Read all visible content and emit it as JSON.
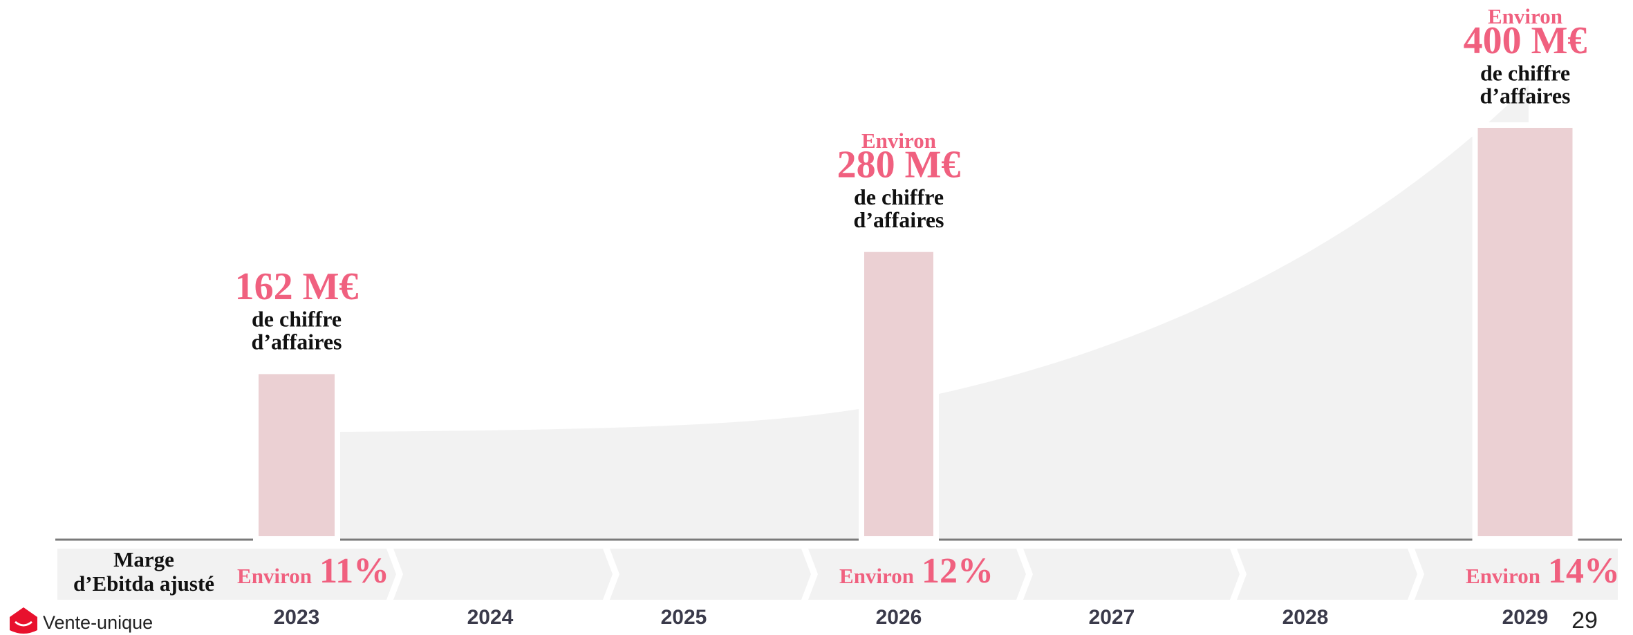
{
  "chart_data": {
    "type": "bar",
    "categories": [
      "2023",
      "2024",
      "2025",
      "2026",
      "2027",
      "2028",
      "2029"
    ],
    "values": [
      162,
      null,
      null,
      280,
      null,
      null,
      400
    ],
    "value_labels": [
      "162 M€",
      null,
      null,
      "280 M€",
      null,
      null,
      "400 M€"
    ],
    "value_prefixes": [
      null,
      null,
      null,
      "Environ",
      null,
      null,
      "Environ"
    ],
    "value_caption": [
      "de chiffre",
      "d’affaires"
    ],
    "color": "#ebd0d3",
    "label_color": "#f0607f",
    "ylim": [
      0,
      400
    ],
    "margin_title": [
      "Marge",
      "d’Ebitda ajusté"
    ],
    "margin_prefixes": [
      "Environ",
      null,
      null,
      "Environ",
      null,
      null,
      "Environ"
    ],
    "margins": [
      11,
      null,
      null,
      12,
      null,
      null,
      14
    ],
    "margin_labels": [
      "11%",
      null,
      null,
      "12%",
      null,
      null,
      "14%"
    ]
  },
  "footer": {
    "logo": "Vente-unique",
    "page_number": "29"
  }
}
